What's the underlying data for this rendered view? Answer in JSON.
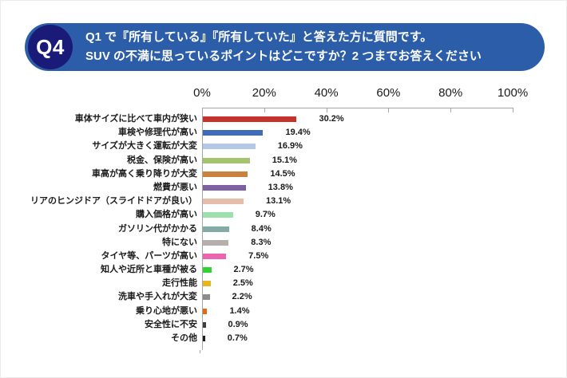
{
  "banner": {
    "badge": "Q4",
    "line1": "Q1 で『所有している』『所有していた』と答えた方に質問です。",
    "line2": "SUV の不満に思っているポイントはどこですか？2 つまでお答えください",
    "background_color": "#2B5DA9",
    "badge_color": "#1A1A78",
    "text_color": "#FFFFFF"
  },
  "chart_data": {
    "type": "bar",
    "orientation": "horizontal",
    "title": "",
    "xlabel": "",
    "ylabel": "",
    "xlim": [
      0,
      100
    ],
    "x_tick_labels": [
      "0%",
      "20%",
      "40%",
      "60%",
      "80%",
      "100%"
    ],
    "x_tick_values": [
      0,
      20,
      40,
      60,
      80,
      100
    ],
    "grid": false,
    "axis_color": "#A6A6A6",
    "categories": [
      "車体サイズに比べて車内が狭い",
      "車検や修理代が高い",
      "サイズが大きく運転が大変",
      "税金、保険が高い",
      "車高が高く乗り降りが大変",
      "燃費が悪い",
      "リアのヒンジドア（スライドドアが良い）",
      "購入価格が高い",
      "ガソリン代がかかる",
      "特にない",
      "タイヤ等、パーツが高い",
      "知人や近所と車種が被る",
      "走行性能",
      "洗車や手入れが大変",
      "乗り心地が悪い",
      "安全性に不安",
      "その他"
    ],
    "values": [
      30.2,
      19.4,
      16.9,
      15.1,
      14.5,
      13.8,
      13.1,
      9.7,
      8.4,
      8.3,
      7.5,
      2.7,
      2.5,
      2.2,
      1.4,
      0.9,
      0.7
    ],
    "value_labels": [
      "30.2%",
      "19.4%",
      "16.9%",
      "15.1%",
      "14.5%",
      "13.8%",
      "13.1%",
      "9.7%",
      "8.4%",
      "8.3%",
      "7.5%",
      "2.7%",
      "2.5%",
      "2.2%",
      "1.4%",
      "0.9%",
      "0.7%"
    ],
    "bar_colors": [
      "#C5342B",
      "#3E6DB5",
      "#B4C7E7",
      "#A5C26E",
      "#C9813F",
      "#7D60A0",
      "#E7BCA8",
      "#9BE0AD",
      "#83AAA6",
      "#B5AEAB",
      "#EC63B0",
      "#33D133",
      "#EAB41F",
      "#8C8C8C",
      "#DE6C15",
      "#3D3D3D",
      "#1A1A1A"
    ]
  }
}
